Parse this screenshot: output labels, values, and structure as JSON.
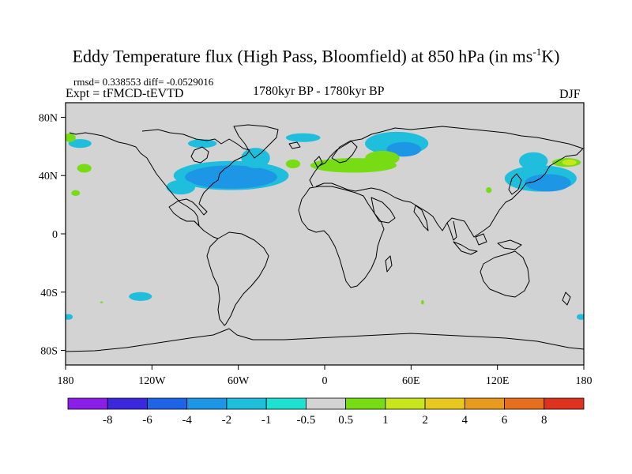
{
  "title": {
    "main": "Eddy Temperature flux (High Pass, Bloomfield) at 850 hPa (in ms",
    "sup": "-1",
    "end": "K)"
  },
  "stats": "rmsd= 0.338553  diff= -0.0529016",
  "expt": "Expt = tFMCD-tEVTD",
  "period": "1780kyr BP - 1780kyr BP",
  "season": "DJF",
  "map": {
    "projection": "cylindrical-equidistant",
    "lon_range": [
      -180,
      180
    ],
    "lat_range": [
      -90,
      90
    ],
    "background_color": "#d3d3d3",
    "coastline_color": "#000000",
    "x_ticks": [
      {
        "lon": -180,
        "label": "180"
      },
      {
        "lon": -120,
        "label": "120W"
      },
      {
        "lon": -60,
        "label": "60W"
      },
      {
        "lon": 0,
        "label": "0"
      },
      {
        "lon": 60,
        "label": "60E"
      },
      {
        "lon": 120,
        "label": "120E"
      },
      {
        "lon": 180,
        "label": "180"
      }
    ],
    "y_ticks": [
      {
        "lat": 80,
        "label": "80N"
      },
      {
        "lat": 40,
        "label": "40N"
      },
      {
        "lat": 0,
        "label": "0"
      },
      {
        "lat": -40,
        "label": "40S"
      },
      {
        "lat": -80,
        "label": "80S"
      }
    ]
  },
  "colorbar": {
    "colors": [
      "#8a1ee6",
      "#3c28dc",
      "#1e64e6",
      "#1e96e6",
      "#1ebedc",
      "#1ee1d2",
      "#d3d3d3",
      "#78dc14",
      "#c8e61e",
      "#e6c81e",
      "#e69b1e",
      "#e66e1e",
      "#dc321e"
    ],
    "labels": [
      "-8",
      "-6",
      "-4",
      "-2",
      "-1",
      "-0.5",
      "0.5",
      "1",
      "2",
      "4",
      "6",
      "8"
    ]
  },
  "anomaly_regions": [
    {
      "name": "north-atlantic-core",
      "level": "-4",
      "lon": -70,
      "lat": 38,
      "rx": 20,
      "ry": 5
    },
    {
      "name": "north-atlantic-outer",
      "level": "-1",
      "lon": -65,
      "lat": 40,
      "rx": 40,
      "ry": 10
    },
    {
      "name": "north-atlantic-mid",
      "level": "-2",
      "lon": -65,
      "lat": 39,
      "rx": 32,
      "ry": 8
    },
    {
      "name": "labrador-arm",
      "level": "-1",
      "lon": -48,
      "lat": 52,
      "rx": 10,
      "ry": 7
    },
    {
      "name": "west-atlantic-tail",
      "level": "-1",
      "lon": -100,
      "lat": 32,
      "rx": 10,
      "ry": 5
    },
    {
      "name": "hudson-band",
      "level": "-1",
      "lon": -85,
      "lat": 62,
      "rx": 10,
      "ry": 3
    },
    {
      "name": "arctic-strip",
      "level": "-1",
      "lon": -15,
      "lat": 66,
      "rx": 12,
      "ry": 3
    },
    {
      "name": "barents-outer",
      "level": "-1",
      "lon": 50,
      "lat": 62,
      "rx": 22,
      "ry": 8
    },
    {
      "name": "barents-core",
      "level": "-2",
      "lon": 55,
      "lat": 58,
      "rx": 12,
      "ry": 5
    },
    {
      "name": "north-pacific-outer",
      "level": "-1",
      "lon": 150,
      "lat": 38,
      "rx": 25,
      "ry": 9
    },
    {
      "name": "north-pacific-mid",
      "level": "-2",
      "lon": 155,
      "lat": 35,
      "rx": 16,
      "ry": 6
    },
    {
      "name": "okhotsk-outer",
      "level": "-1",
      "lon": 145,
      "lat": 50,
      "rx": 10,
      "ry": 6
    },
    {
      "name": "alaska-patch",
      "level": "-1",
      "lon": -170,
      "lat": 62,
      "rx": 8,
      "ry": 3
    },
    {
      "name": "south-pacific",
      "level": "-1",
      "lon": -128,
      "lat": -43,
      "rx": 8,
      "ry": 3
    },
    {
      "name": "south-atlantic-edge",
      "level": "-1",
      "lon": -178,
      "lat": -57,
      "rx": 3,
      "ry": 2
    },
    {
      "name": "south-indian-edge",
      "level": "-1",
      "lon": 178,
      "lat": -57,
      "rx": 3,
      "ry": 2
    },
    {
      "name": "europe-band",
      "level": "0.5",
      "lon": 20,
      "lat": 47,
      "rx": 30,
      "ry": 5
    },
    {
      "name": "siberia-patch",
      "level": "0.5",
      "lon": 40,
      "lat": 52,
      "rx": 12,
      "ry": 5
    },
    {
      "name": "mid-atlantic-patch",
      "level": "0.5",
      "lon": -22,
      "lat": 48,
      "rx": 5,
      "ry": 3
    },
    {
      "name": "pacific-green-west",
      "level": "0.5",
      "lon": -167,
      "lat": 45,
      "rx": 5,
      "ry": 3
    },
    {
      "name": "pacific-green-south",
      "level": "0.5",
      "lon": -173,
      "lat": 28,
      "rx": 3,
      "ry": 2
    },
    {
      "name": "alaska-green",
      "level": "0.5",
      "lon": -177,
      "lat": 66,
      "rx": 4,
      "ry": 3
    },
    {
      "name": "kamchatka-green",
      "level": "0.5",
      "lon": 168,
      "lat": 49,
      "rx": 10,
      "ry": 3
    },
    {
      "name": "kamchatka-yellow",
      "level": "1",
      "lon": 170,
      "lat": 49,
      "rx": 5,
      "ry": 2
    },
    {
      "name": "korea-green",
      "level": "0.5",
      "lon": 114,
      "lat": 30,
      "rx": 2,
      "ry": 2
    },
    {
      "name": "south-africa-green",
      "level": "0.5",
      "lon": 68,
      "lat": -47,
      "rx": 1,
      "ry": 1.5
    },
    {
      "name": "south-pacific-dot",
      "level": "0.5",
      "lon": -155,
      "lat": -47,
      "rx": 1,
      "ry": 0.6
    }
  ]
}
